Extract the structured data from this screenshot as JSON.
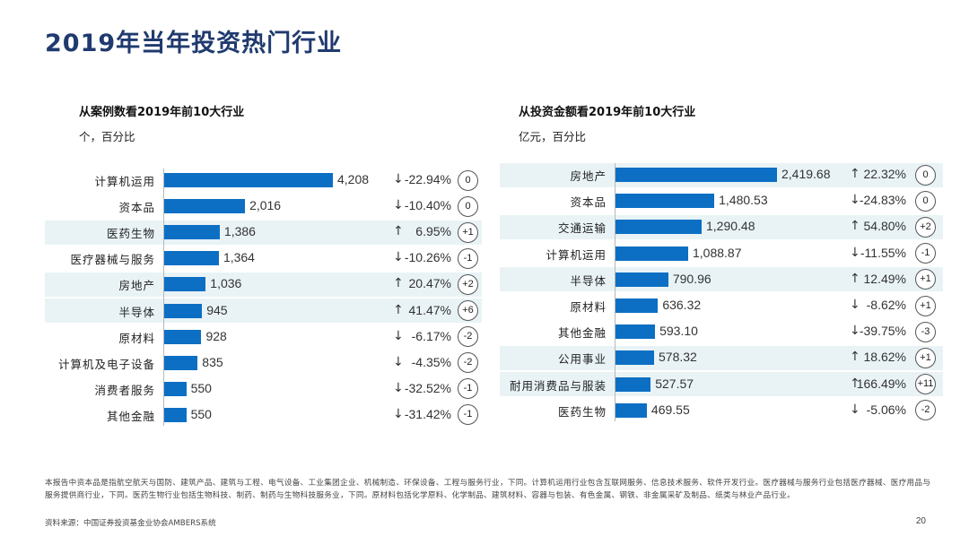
{
  "page": {
    "title": "2019年当年投资热门行业",
    "footnote": "本报告中资本品是指航空航天与国防、建筑产品、建筑与工程、电气设备、工业集团企业、机械制造、环保设备、工程与服务行业，下同。计算机运用行业包含互联网服务、信息技术服务、软件开发行业。医疗器械与服务行业包括医疗器械、医疗用品与服务提供商行业，下同。医药生物行业包括生物科技、制药、制药与生物科技服务业，下同。原材料包括化学原料、化学制品、建筑材料、容器与包装、有色金属、钢铁、非金属采矿及制品、纸类与林业产品行业。",
    "source": "资料来源：中国证券投资基金业协会AMBERS系统",
    "page_number": "20"
  },
  "chart_data": [
    {
      "type": "bar",
      "orientation": "horizontal",
      "title": "从案例数看2019年前10大行业",
      "unit": "个，百分比",
      "categories": [
        "计算机运用",
        "资本品",
        "医药生物",
        "医疗器械与服务",
        "房地产",
        "半导体",
        "原材料",
        "计算机及电子设备",
        "消费者服务",
        "其他金融"
      ],
      "values": [
        4208,
        2016,
        1386,
        1364,
        1036,
        945,
        928,
        835,
        550,
        550
      ],
      "value_labels": [
        "4,208",
        "2,016",
        "1,386",
        "1,364",
        "1,036",
        "945",
        "928",
        "835",
        "550",
        "550"
      ],
      "change_direction": [
        "↓",
        "↓",
        "↑",
        "↓",
        "↑",
        "↑",
        "↓",
        "↓",
        "↓",
        "↓"
      ],
      "change_labels": [
        "-22.94%",
        "-10.40%",
        "6.95%",
        "-10.26%",
        "20.47%",
        "41.47%",
        "-6.17%",
        "-4.35%",
        "-32.52%",
        "-31.42%"
      ],
      "rank_change": [
        "0",
        "0",
        "+1",
        "-1",
        "+2",
        "+6",
        "-2",
        "-2",
        "-1",
        "-1"
      ],
      "highlighted_rows": [
        2,
        4,
        5
      ],
      "xlim": [
        0,
        4208
      ],
      "grid": false,
      "bar_color": "#0c6fc4"
    },
    {
      "type": "bar",
      "orientation": "horizontal",
      "title": "从投资金额看2019年前10大行业",
      "unit": "亿元，百分比",
      "categories": [
        "房地产",
        "资本品",
        "交通运输",
        "计算机运用",
        "半导体",
        "原材料",
        "其他金融",
        "公用事业",
        "耐用消费品与服装",
        "医药生物"
      ],
      "values": [
        2419.68,
        1480.53,
        1290.48,
        1088.87,
        790.96,
        636.32,
        593.1,
        578.32,
        527.57,
        469.55
      ],
      "value_labels": [
        "2,419.68",
        "1,480.53",
        "1,290.48",
        "1,088.87",
        "790.96",
        "636.32",
        "593.10",
        "578.32",
        "527.57",
        "469.55"
      ],
      "change_direction": [
        "↑",
        "↓",
        "↑",
        "↓",
        "↑",
        "↓",
        "↓",
        "↑",
        "↑",
        "↓"
      ],
      "change_labels": [
        "22.32%",
        "-24.83%",
        "54.80%",
        "-11.55%",
        "12.49%",
        "-8.62%",
        "-39.75%",
        "18.62%",
        "166.49%",
        "-5.06%"
      ],
      "rank_change": [
        "0",
        "0",
        "+2",
        "-1",
        "+1",
        "+1",
        "-3",
        "+1",
        "+11",
        "-2"
      ],
      "highlighted_rows": [
        0,
        2,
        4,
        7,
        8
      ],
      "xlim": [
        0,
        2419.68
      ],
      "grid": false,
      "bar_color": "#0c6fc4"
    }
  ]
}
